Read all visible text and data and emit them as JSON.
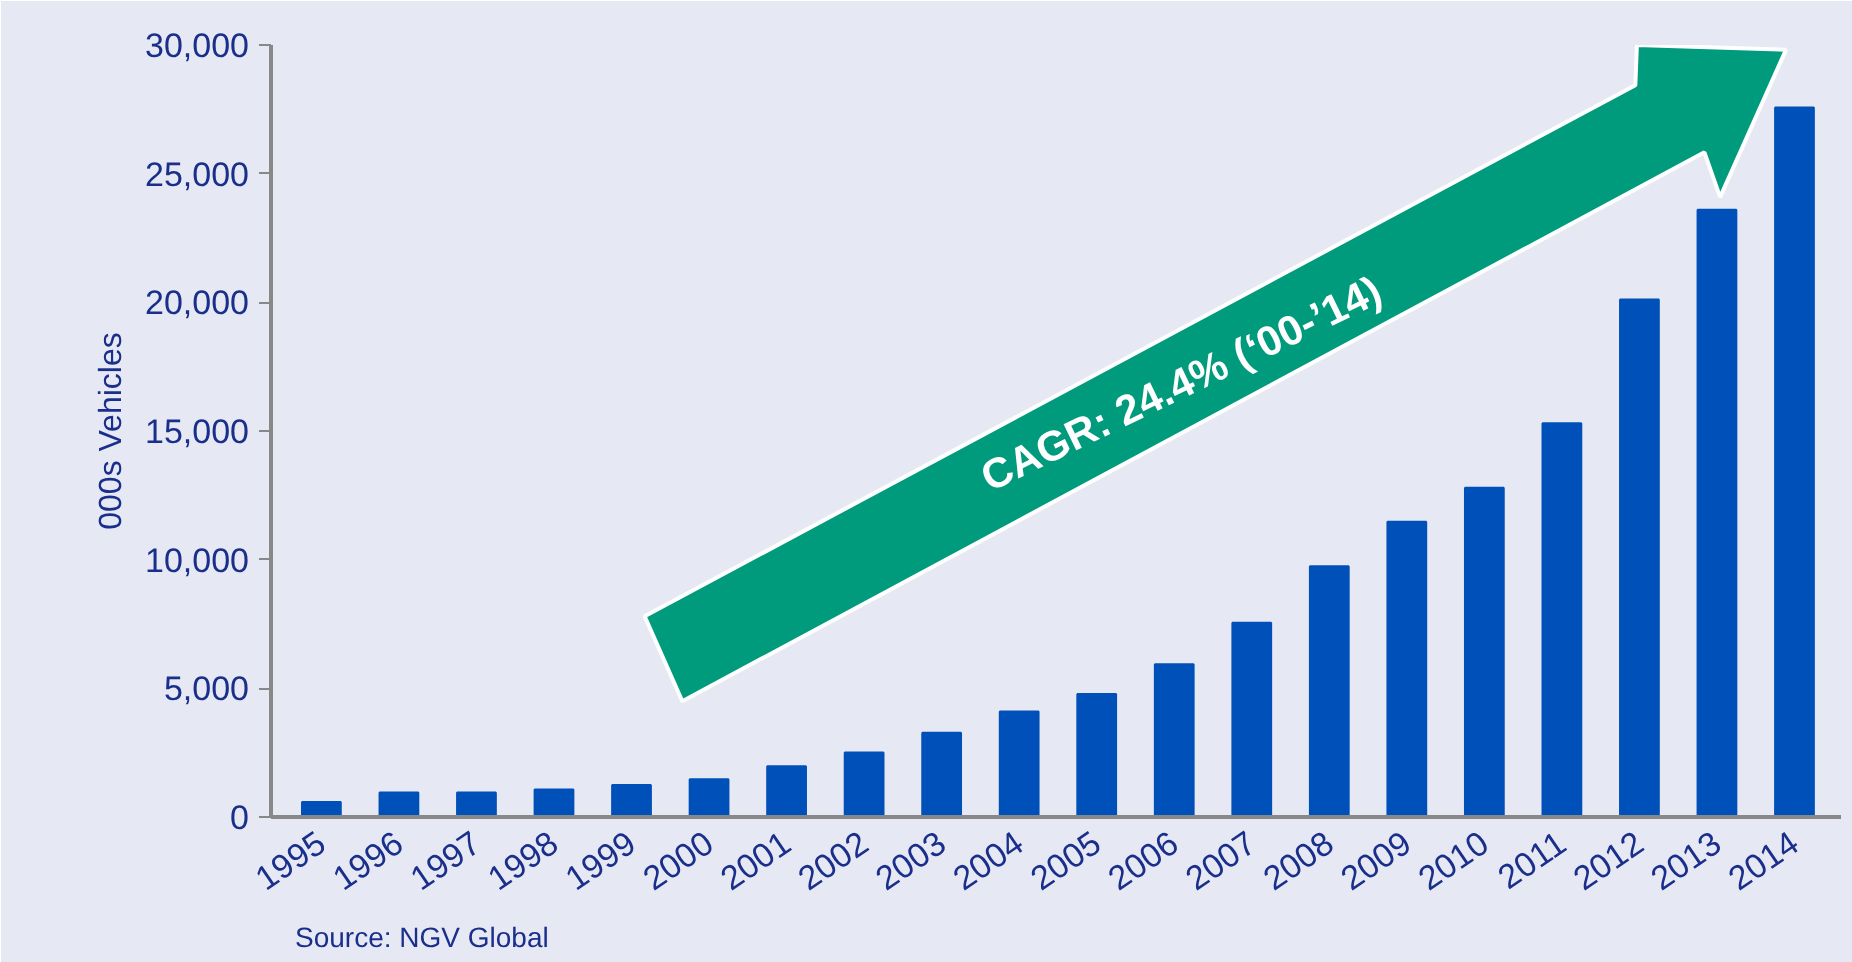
{
  "chart_data": {
    "type": "bar",
    "categories": [
      "1995",
      "1996",
      "1997",
      "1998",
      "1999",
      "2000",
      "2001",
      "2002",
      "2003",
      "2004",
      "2005",
      "2006",
      "2007",
      "2008",
      "2009",
      "2010",
      "2011",
      "2012",
      "2013",
      "2014"
    ],
    "values": [
      580,
      950,
      950,
      1070,
      1240,
      1470,
      1970,
      2510,
      3270,
      4100,
      4780,
      5940,
      7550,
      9740,
      11470,
      12790,
      15300,
      20110,
      23600,
      27570
    ],
    "color": "#0050b9",
    "ylabel": "000s Vehicles",
    "ylim": [
      0,
      30000
    ],
    "yticks": [
      {
        "value": 0,
        "label": "0"
      },
      {
        "value": 5000,
        "label": "5,000"
      },
      {
        "value": 10000,
        "label": "10,000"
      },
      {
        "value": 15000,
        "label": "15,000"
      },
      {
        "value": 20000,
        "label": "20,000"
      },
      {
        "value": 25000,
        "label": "25,000"
      },
      {
        "value": 30000,
        "label": "30,000"
      }
    ],
    "annotations": [
      "CAGR: 24.4% (‘00-’14)",
      "Source: NGV Global"
    ],
    "grid": false
  }
}
